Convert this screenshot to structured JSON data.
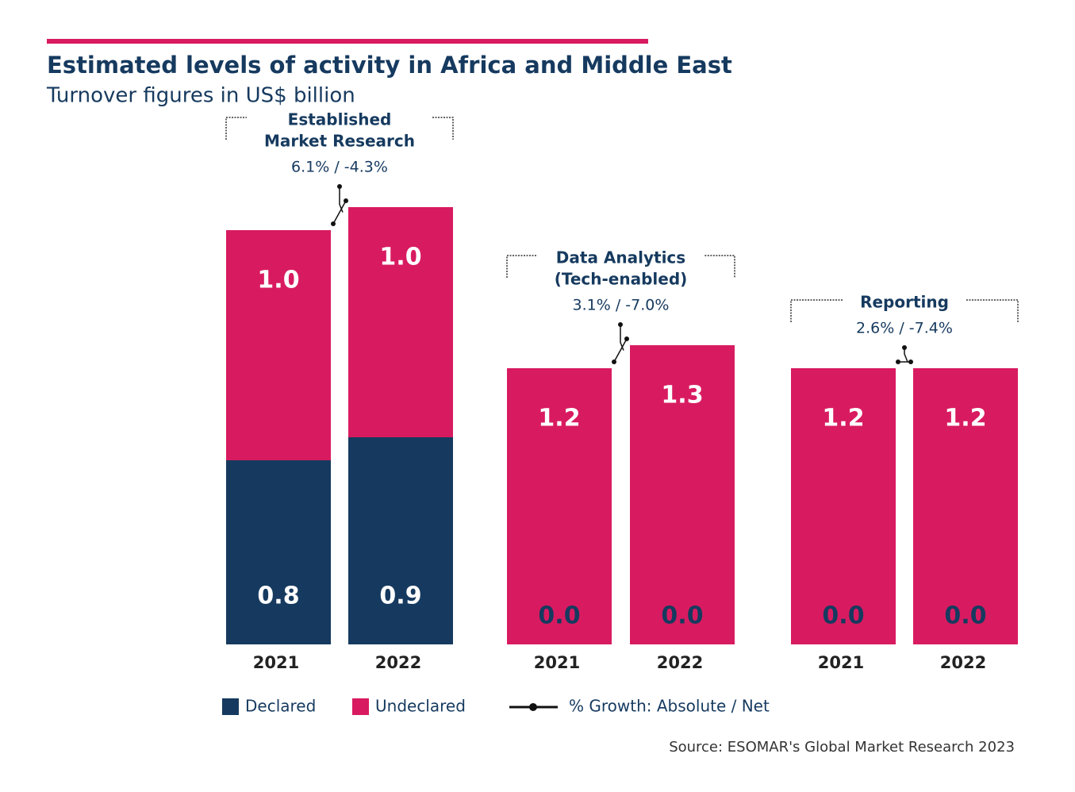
{
  "chart_data": {
    "type": "bar",
    "stacked": true,
    "title": "Estimated levels of activity in Africa and Middle East",
    "subtitle": "Turnover figures in US$ billion",
    "groups": [
      {
        "label": [
          "Established",
          "Market Research"
        ],
        "growth": "6.1% / -4.3%"
      },
      {
        "label": [
          "Data Analytics",
          "(Tech-enabled)"
        ],
        "growth": "3.1% / -7.0%"
      },
      {
        "label": [
          "Reporting"
        ],
        "growth": "2.6% / -7.4%"
      }
    ],
    "categories": [
      "2021",
      "2022",
      "2021",
      "2022",
      "2021",
      "2022"
    ],
    "series": [
      {
        "name": "Declared",
        "color": "#163a5f",
        "values": [
          0.8,
          0.9,
          0.0,
          0.0,
          0.0,
          0.0
        ],
        "value_labels": [
          "0.8",
          "0.9",
          "0.0",
          "0.0",
          "0.0",
          "0.0"
        ]
      },
      {
        "name": "Undeclared",
        "color": "#d81b60",
        "values": [
          1.0,
          1.0,
          1.2,
          1.3,
          1.2,
          1.2
        ],
        "value_labels": [
          "1.0",
          "1.0",
          "1.2",
          "1.3",
          "1.2",
          "1.2"
        ]
      }
    ],
    "growth_legend": "% Growth: Absolute / Net",
    "source": "Source: ESOMAR's Global Market Research 2023"
  }
}
